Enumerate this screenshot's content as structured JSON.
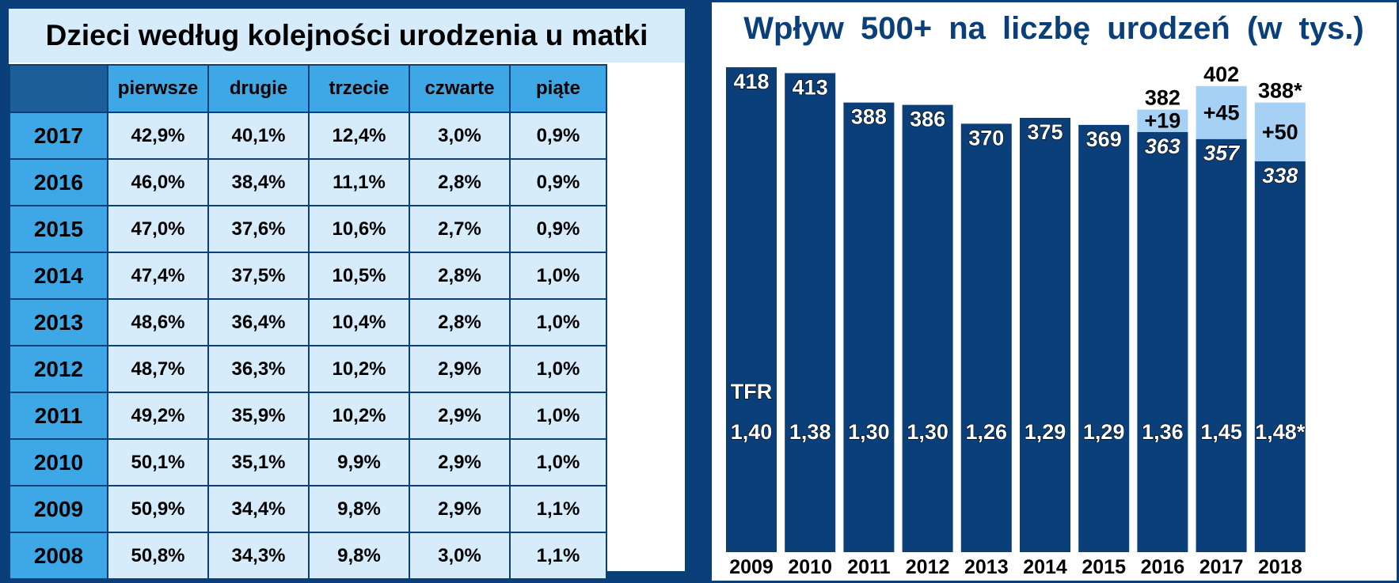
{
  "left_table": {
    "title": "Dzieci według kolejności urodzenia u matki",
    "columns": [
      "pierwsze",
      "drugie",
      "trzecie",
      "czwarte",
      "piąte"
    ],
    "rows": [
      {
        "year": "2017",
        "cells": [
          "42,9%",
          "40,1%",
          "12,4%",
          "3,0%",
          "0,9%"
        ]
      },
      {
        "year": "2016",
        "cells": [
          "46,0%",
          "38,4%",
          "11,1%",
          "2,8%",
          "0,9%"
        ]
      },
      {
        "year": "2015",
        "cells": [
          "47,0%",
          "37,6%",
          "10,6%",
          "2,7%",
          "0,9%"
        ]
      },
      {
        "year": "2014",
        "cells": [
          "47,4%",
          "37,5%",
          "10,5%",
          "2,8%",
          "1,0%"
        ]
      },
      {
        "year": "2013",
        "cells": [
          "48,6%",
          "36,4%",
          "10,4%",
          "2,8%",
          "1,0%"
        ]
      },
      {
        "year": "2012",
        "cells": [
          "48,7%",
          "36,3%",
          "10,2%",
          "2,9%",
          "1,0%"
        ]
      },
      {
        "year": "2011",
        "cells": [
          "49,2%",
          "35,9%",
          "10,2%",
          "2,9%",
          "1,0%"
        ]
      },
      {
        "year": "2010",
        "cells": [
          "50,1%",
          "35,1%",
          "9,9%",
          "2,9%",
          "1,0%"
        ]
      },
      {
        "year": "2009",
        "cells": [
          "50,9%",
          "34,4%",
          "9,8%",
          "2,9%",
          "1,1%"
        ]
      },
      {
        "year": "2008",
        "cells": [
          "50,8%",
          "34,3%",
          "9,8%",
          "3,0%",
          "1,1%"
        ]
      }
    ]
  },
  "chart_data": [
    {
      "type": "table",
      "title": "Dzieci według kolejności urodzenia u matki",
      "columns": [
        "pierwsze",
        "drugie",
        "trzecie",
        "czwarte",
        "piąte"
      ],
      "row_labels": [
        "2017",
        "2016",
        "2015",
        "2014",
        "2013",
        "2012",
        "2011",
        "2010",
        "2009",
        "2008"
      ],
      "values": [
        [
          42.9,
          40.1,
          12.4,
          3.0,
          0.9
        ],
        [
          46.0,
          38.4,
          11.1,
          2.8,
          0.9
        ],
        [
          47.0,
          37.6,
          10.6,
          2.7,
          0.9
        ],
        [
          47.4,
          37.5,
          10.5,
          2.8,
          1.0
        ],
        [
          48.6,
          36.4,
          10.4,
          2.8,
          1.0
        ],
        [
          48.7,
          36.3,
          10.2,
          2.9,
          1.0
        ],
        [
          49.2,
          35.9,
          10.2,
          2.9,
          1.0
        ],
        [
          50.1,
          35.1,
          9.9,
          2.9,
          1.0
        ],
        [
          50.9,
          34.4,
          9.8,
          2.9,
          1.1
        ],
        [
          50.8,
          34.3,
          9.8,
          3.0,
          1.1
        ]
      ]
    },
    {
      "type": "bar",
      "title": "Wpływ 500+ na liczbę urodzeń (w tys.)",
      "categories": [
        "2009",
        "2010",
        "2011",
        "2012",
        "2013",
        "2014",
        "2015",
        "2016",
        "2017",
        "2018"
      ],
      "series": [
        {
          "values": [
            418,
            413,
            388,
            386,
            370,
            375,
            369,
            363,
            357,
            338
          ],
          "value_labels": [
            "418",
            "413",
            "388",
            "386",
            "370",
            "375",
            "369",
            "363",
            "357",
            "338"
          ],
          "color": "#0a3f7a"
        },
        {
          "values": [
            0,
            0,
            0,
            0,
            0,
            0,
            0,
            19,
            45,
            50
          ],
          "value_labels": [
            "",
            "",
            "",
            "",
            "",
            "",
            "",
            "+19",
            "+45",
            "+50"
          ],
          "color": "#a7d1f4"
        }
      ],
      "totals": [
        null,
        null,
        null,
        null,
        null,
        null,
        null,
        "382",
        "402",
        "388*"
      ],
      "tfr_label": "TFR",
      "tfr": [
        "1,40",
        "1,38",
        "1,30",
        "1,30",
        "1,26",
        "1,29",
        "1,29",
        "1,36",
        "1,45",
        "1,48*"
      ],
      "ylim": [
        0,
        430
      ]
    }
  ]
}
